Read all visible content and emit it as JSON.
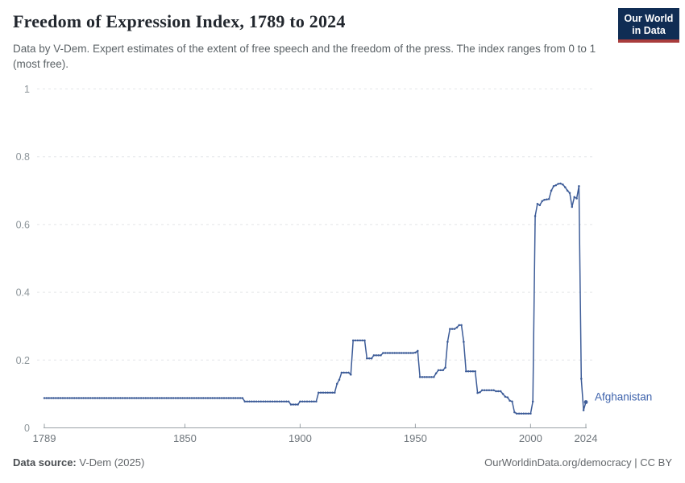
{
  "header": {
    "title": "Freedom of Expression Index, 1789 to 2024",
    "subtitle": "Data by V-Dem. Expert estimates of the extent of free speech and the freedom of the press. The index ranges from 0 to 1 (most free)."
  },
  "logo": {
    "line1": "Our World",
    "line2": "in Data",
    "bg_color": "#102d54",
    "accent_color": "#a93c3c"
  },
  "chart_data": {
    "type": "line",
    "title": "Freedom of Expression Index, 1789 to 2024",
    "xlabel": "",
    "ylabel": "",
    "x_min": 1789,
    "x_max": 2024,
    "ylim": [
      0,
      1
    ],
    "yticks": [
      0,
      0.2,
      0.4,
      0.6,
      0.8,
      1
    ],
    "xticks": [
      1789,
      1850,
      1900,
      1950,
      2000,
      2024
    ],
    "grid": "horizontal-dashed",
    "legend_position": "end-of-line-label",
    "colors": {
      "gridline": "#e3e5e8",
      "y_tick_label": "#8d959a",
      "x_tick_label": "#6f767c",
      "axis_line": "#9aa1a6"
    },
    "series": [
      {
        "name": "Afghanistan",
        "color": "#3d5c98",
        "label_color": "#3e63ac",
        "start_year": 1789,
        "end_year": 2024,
        "values": [
          0.088,
          0.088,
          0.088,
          0.088,
          0.088,
          0.088,
          0.088,
          0.088,
          0.088,
          0.088,
          0.088,
          0.088,
          0.088,
          0.088,
          0.088,
          0.088,
          0.088,
          0.088,
          0.088,
          0.088,
          0.088,
          0.088,
          0.088,
          0.088,
          0.088,
          0.088,
          0.088,
          0.088,
          0.088,
          0.088,
          0.088,
          0.088,
          0.088,
          0.088,
          0.088,
          0.088,
          0.088,
          0.088,
          0.088,
          0.088,
          0.088,
          0.088,
          0.088,
          0.088,
          0.088,
          0.088,
          0.088,
          0.088,
          0.088,
          0.088,
          0.088,
          0.088,
          0.088,
          0.088,
          0.088,
          0.088,
          0.088,
          0.088,
          0.088,
          0.088,
          0.088,
          0.088,
          0.088,
          0.088,
          0.088,
          0.088,
          0.088,
          0.088,
          0.088,
          0.088,
          0.088,
          0.088,
          0.088,
          0.088,
          0.088,
          0.088,
          0.088,
          0.088,
          0.088,
          0.088,
          0.088,
          0.088,
          0.088,
          0.088,
          0.088,
          0.088,
          0.088,
          0.078,
          0.078,
          0.078,
          0.078,
          0.078,
          0.078,
          0.078,
          0.078,
          0.078,
          0.078,
          0.078,
          0.078,
          0.078,
          0.078,
          0.078,
          0.078,
          0.078,
          0.078,
          0.078,
          0.078,
          0.069,
          0.069,
          0.069,
          0.069,
          0.078,
          0.078,
          0.078,
          0.078,
          0.078,
          0.078,
          0.078,
          0.078,
          0.104,
          0.104,
          0.104,
          0.104,
          0.104,
          0.104,
          0.104,
          0.104,
          0.13,
          0.142,
          0.163,
          0.163,
          0.163,
          0.163,
          0.157,
          0.258,
          0.258,
          0.258,
          0.258,
          0.258,
          0.258,
          0.205,
          0.205,
          0.205,
          0.214,
          0.214,
          0.214,
          0.214,
          0.221,
          0.221,
          0.221,
          0.221,
          0.221,
          0.221,
          0.221,
          0.221,
          0.221,
          0.221,
          0.221,
          0.221,
          0.221,
          0.221,
          0.222,
          0.227,
          0.15,
          0.15,
          0.15,
          0.15,
          0.15,
          0.15,
          0.15,
          0.161,
          0.17,
          0.17,
          0.17,
          0.178,
          0.254,
          0.292,
          0.292,
          0.292,
          0.296,
          0.303,
          0.303,
          0.254,
          0.167,
          0.167,
          0.167,
          0.167,
          0.167,
          0.103,
          0.105,
          0.111,
          0.111,
          0.111,
          0.111,
          0.111,
          0.111,
          0.108,
          0.108,
          0.108,
          0.1,
          0.092,
          0.09,
          0.08,
          0.078,
          0.046,
          0.042,
          0.042,
          0.042,
          0.042,
          0.042,
          0.042,
          0.042,
          0.078,
          0.625,
          0.661,
          0.657,
          0.669,
          0.673,
          0.674,
          0.675,
          0.7,
          0.713,
          0.716,
          0.72,
          0.721,
          0.718,
          0.71,
          0.7,
          0.693,
          0.652,
          0.681,
          0.677,
          0.713,
          0.145,
          0.052,
          0.076
        ]
      }
    ]
  },
  "footer": {
    "source_label": "Data source:",
    "source_value": "V-Dem (2025)",
    "credit": "OurWorldinData.org/democracy | CC BY"
  }
}
